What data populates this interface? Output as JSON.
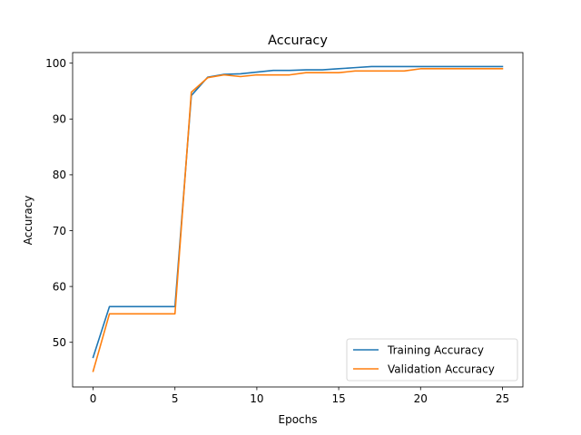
{
  "chart_data": {
    "type": "line",
    "title": "Accuracy",
    "xlabel": "Epochs",
    "ylabel": "Accuracy",
    "xlim": [
      -1.25,
      26.25
    ],
    "ylim": [
      42.0,
      101.9
    ],
    "xticks": [
      0,
      5,
      10,
      15,
      20,
      25
    ],
    "yticks": [
      50,
      60,
      70,
      80,
      90,
      100
    ],
    "grid": false,
    "legend_position": "lower-right",
    "x": [
      0,
      1,
      2,
      3,
      4,
      5,
      6,
      7,
      8,
      9,
      10,
      11,
      12,
      13,
      14,
      15,
      16,
      17,
      18,
      19,
      20,
      21,
      22,
      23,
      24,
      25
    ],
    "series": [
      {
        "name": "Training Accuracy",
        "color": "#1f77b4",
        "values": [
          47.3,
          56.4,
          56.4,
          56.4,
          56.4,
          56.4,
          94.2,
          97.5,
          98.0,
          98.1,
          98.4,
          98.7,
          98.7,
          98.8,
          98.8,
          99.0,
          99.2,
          99.4,
          99.4,
          99.4,
          99.4,
          99.4,
          99.4,
          99.4,
          99.4,
          99.4
        ]
      },
      {
        "name": "Validation Accuracy",
        "color": "#ff7f0e",
        "values": [
          44.8,
          55.1,
          55.1,
          55.1,
          55.1,
          55.1,
          94.8,
          97.4,
          97.9,
          97.6,
          97.9,
          97.9,
          97.9,
          98.3,
          98.3,
          98.3,
          98.6,
          98.6,
          98.6,
          98.6,
          99.0,
          99.0,
          99.0,
          99.0,
          99.0,
          99.0
        ]
      }
    ]
  }
}
